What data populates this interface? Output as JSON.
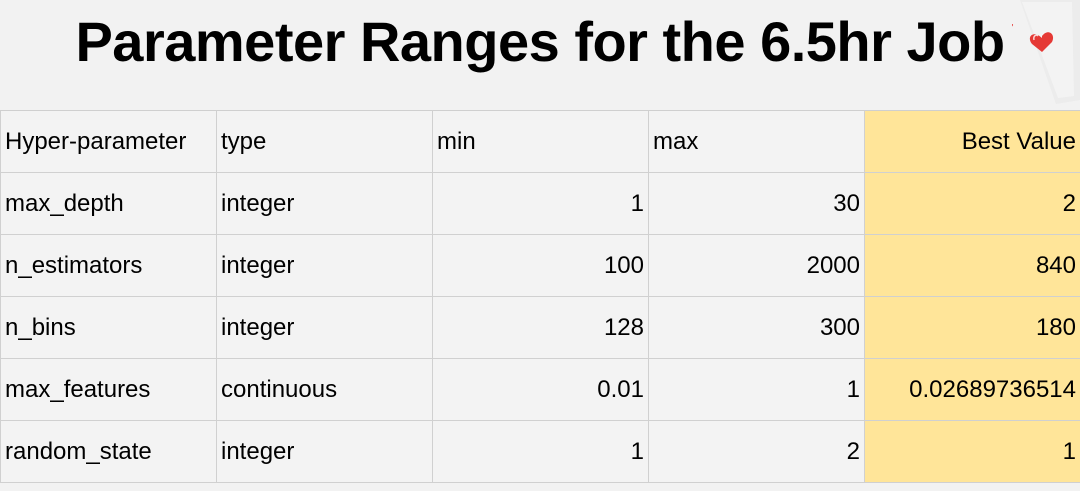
{
  "title": "Parameter Ranges for the 6.5hr Job",
  "decor_icon": "playing-card-heart-icon",
  "accent_color": "#ffe599",
  "table": {
    "headers": [
      "Hyper-parameter",
      "type",
      "min",
      "max",
      "Best Value"
    ],
    "rows": [
      [
        "max_depth",
        "integer",
        "1",
        "30",
        "2"
      ],
      [
        "n_estimators",
        "integer",
        "100",
        "2000",
        "840"
      ],
      [
        "n_bins",
        "integer",
        "128",
        "300",
        "180"
      ],
      [
        "max_features",
        "continuous",
        "0.01",
        "1",
        "0.02689736514"
      ],
      [
        "random_state",
        "integer",
        "1",
        "2",
        "1"
      ]
    ]
  }
}
